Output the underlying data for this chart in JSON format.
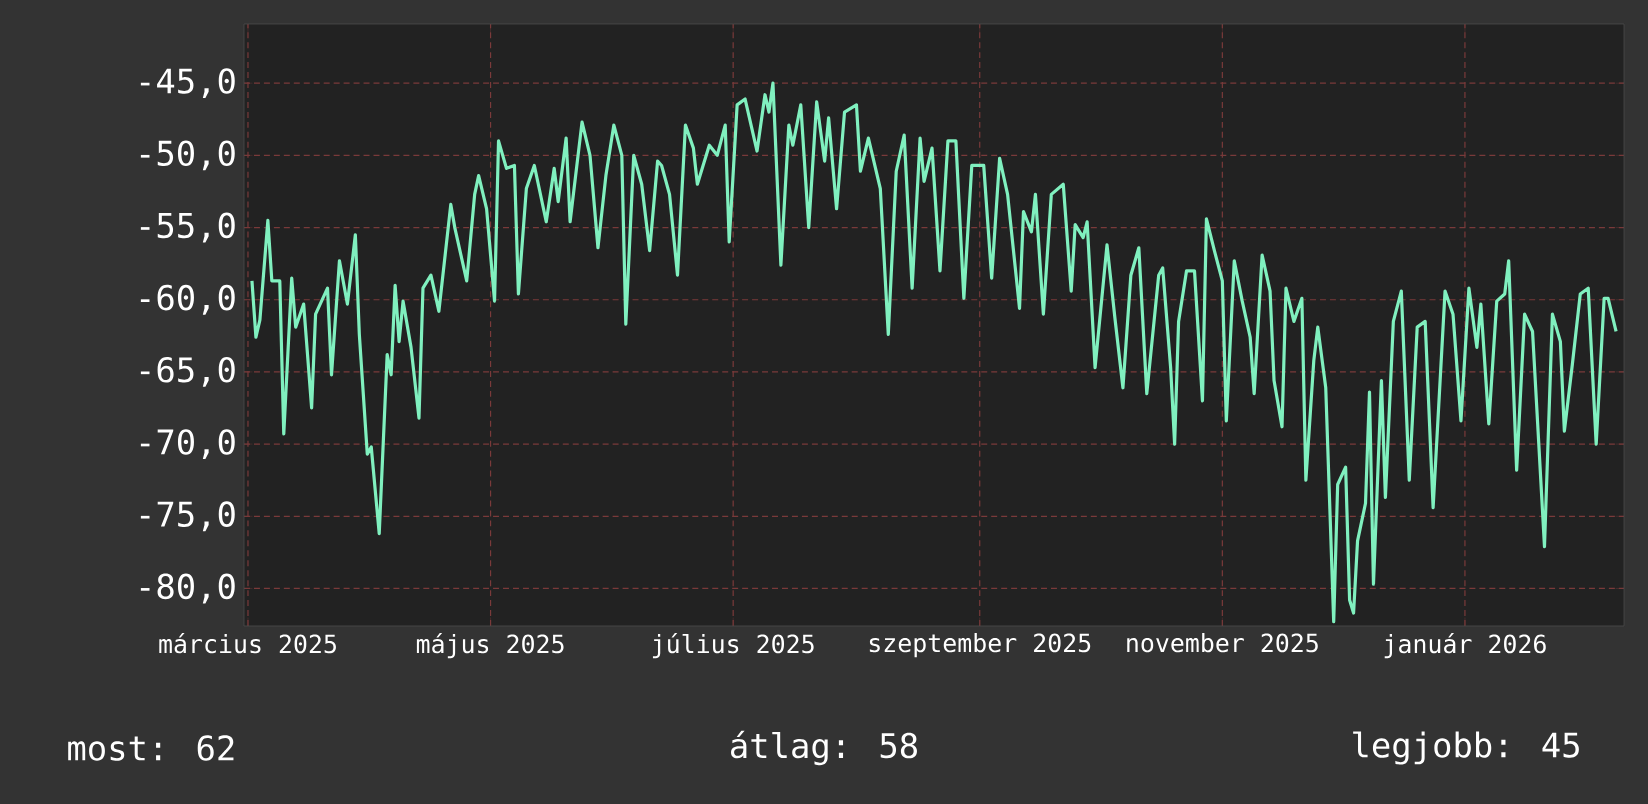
{
  "chart_data": {
    "type": "line",
    "color": "#80f0bf",
    "grid": true,
    "xlim": [
      "2025-02-28",
      "2026-02-10"
    ],
    "ylim": [
      -82.6,
      -40.9
    ],
    "xticks": [
      {
        "value": "2025-03-01",
        "label": "március 2025"
      },
      {
        "value": "2025-05-01",
        "label": "május 2025"
      },
      {
        "value": "2025-07-01",
        "label": "július 2025"
      },
      {
        "value": "2025-09-01",
        "label": "szeptember 2025"
      },
      {
        "value": "2025-11-01",
        "label": "november 2025"
      },
      {
        "value": "2026-01-01",
        "label": "január 2026"
      }
    ],
    "yticks": [
      {
        "value": -45,
        "label": "-45,0"
      },
      {
        "value": -50,
        "label": "-50,0"
      },
      {
        "value": -55,
        "label": "-55,0"
      },
      {
        "value": -60,
        "label": "-60,0"
      },
      {
        "value": -65,
        "label": "-65,0"
      },
      {
        "value": -70,
        "label": "-70,0"
      },
      {
        "value": -75,
        "label": "-75,0"
      },
      {
        "value": -80,
        "label": "-80,0"
      }
    ],
    "x": [
      "2025-03-02",
      "2025-03-03",
      "2025-03-04",
      "2025-03-06",
      "2025-03-07",
      "2025-03-09",
      "2025-03-10",
      "2025-03-12",
      "2025-03-13",
      "2025-03-15",
      "2025-03-17",
      "2025-03-18",
      "2025-03-21",
      "2025-03-22",
      "2025-03-24",
      "2025-03-26",
      "2025-03-28",
      "2025-03-29",
      "2025-03-31",
      "2025-04-01",
      "2025-04-03",
      "2025-04-05",
      "2025-04-06",
      "2025-04-07",
      "2025-04-08",
      "2025-04-09",
      "2025-04-11",
      "2025-04-13",
      "2025-04-14",
      "2025-04-16",
      "2025-04-18",
      "2025-04-21",
      "2025-04-22",
      "2025-04-25",
      "2025-04-27",
      "2025-04-28",
      "2025-04-30",
      "2025-05-02",
      "2025-05-03",
      "2025-05-05",
      "2025-05-07",
      "2025-05-08",
      "2025-05-10",
      "2025-05-12",
      "2025-05-15",
      "2025-05-17",
      "2025-05-18",
      "2025-05-20",
      "2025-05-21",
      "2025-05-24",
      "2025-05-26",
      "2025-05-28",
      "2025-05-30",
      "2025-06-01",
      "2025-06-03",
      "2025-06-04",
      "2025-06-06",
      "2025-06-08",
      "2025-06-10",
      "2025-06-12",
      "2025-06-13",
      "2025-06-15",
      "2025-06-17",
      "2025-06-19",
      "2025-06-21",
      "2025-06-22",
      "2025-06-25",
      "2025-06-27",
      "2025-06-29",
      "2025-06-30",
      "2025-07-02",
      "2025-07-04",
      "2025-07-07",
      "2025-07-09",
      "2025-07-10",
      "2025-07-11",
      "2025-07-13",
      "2025-07-15",
      "2025-07-16",
      "2025-07-18",
      "2025-07-20",
      "2025-07-22",
      "2025-07-24",
      "2025-07-25",
      "2025-07-27",
      "2025-07-29",
      "2025-08-01",
      "2025-08-02",
      "2025-08-04",
      "2025-08-07",
      "2025-08-09",
      "2025-08-11",
      "2025-08-13",
      "2025-08-15",
      "2025-08-17",
      "2025-08-18",
      "2025-08-20",
      "2025-08-22",
      "2025-08-24",
      "2025-08-26",
      "2025-08-28",
      "2025-08-30",
      "2025-09-02",
      "2025-09-04",
      "2025-09-06",
      "2025-09-08",
      "2025-09-11",
      "2025-09-12",
      "2025-09-14",
      "2025-09-15",
      "2025-09-17",
      "2025-09-19",
      "2025-09-22",
      "2025-09-24",
      "2025-09-25",
      "2025-09-27",
      "2025-09-28",
      "2025-09-30",
      "2025-10-03",
      "2025-10-05",
      "2025-10-07",
      "2025-10-09",
      "2025-10-11",
      "2025-10-13",
      "2025-10-16",
      "2025-10-17",
      "2025-10-19",
      "2025-10-20",
      "2025-10-21",
      "2025-10-23",
      "2025-10-25",
      "2025-10-27",
      "2025-10-28",
      "2025-10-30",
      "2025-11-01",
      "2025-11-02",
      "2025-11-04",
      "2025-11-06",
      "2025-11-08",
      "2025-11-09",
      "2025-11-11",
      "2025-11-13",
      "2025-11-14",
      "2025-11-16",
      "2025-11-17",
      "2025-11-19",
      "2025-11-21",
      "2025-11-22",
      "2025-11-24",
      "2025-11-25",
      "2025-11-27",
      "2025-11-29",
      "2025-11-30",
      "2025-12-02",
      "2025-12-03",
      "2025-12-04",
      "2025-12-05",
      "2025-12-07",
      "2025-12-08",
      "2025-12-09",
      "2025-12-11",
      "2025-12-12",
      "2025-12-14",
      "2025-12-16",
      "2025-12-18",
      "2025-12-20",
      "2025-12-22",
      "2025-12-24",
      "2025-12-27",
      "2025-12-29",
      "2025-12-31",
      "2026-01-02",
      "2026-01-04",
      "2026-01-05",
      "2026-01-07",
      "2026-01-09",
      "2026-01-11",
      "2026-01-12",
      "2026-01-14",
      "2026-01-16",
      "2026-01-18",
      "2026-01-21",
      "2026-01-23",
      "2026-01-25",
      "2026-01-26",
      "2026-01-28",
      "2026-01-30",
      "2026-02-01",
      "2026-02-03",
      "2026-02-05",
      "2026-02-06",
      "2026-02-08"
    ],
    "values": [
      -58.7,
      -62.6,
      -61.4,
      -54.5,
      -58.7,
      -58.7,
      -69.3,
      -58.5,
      -61.9,
      -60.3,
      -67.5,
      -61.0,
      -59.2,
      -65.2,
      -57.3,
      -60.3,
      -55.5,
      -62.4,
      -70.7,
      -70.2,
      -76.2,
      -63.8,
      -65.2,
      -59.0,
      -62.9,
      -60.1,
      -63.3,
      -68.2,
      -59.2,
      -58.3,
      -60.8,
      -53.4,
      -55.0,
      -58.7,
      -52.7,
      -51.4,
      -53.7,
      -60.1,
      -49.0,
      -50.9,
      -50.7,
      -59.6,
      -52.3,
      -50.7,
      -54.6,
      -50.9,
      -53.2,
      -48.8,
      -54.6,
      -47.7,
      -50.0,
      -56.4,
      -51.4,
      -47.9,
      -50.0,
      -61.7,
      -50.0,
      -52.0,
      -56.6,
      -50.4,
      -50.7,
      -52.7,
      -58.3,
      -47.9,
      -49.5,
      -52.0,
      -49.3,
      -50.0,
      -47.9,
      -56.0,
      -46.5,
      -46.1,
      -49.7,
      -45.8,
      -47.0,
      -45.0,
      -57.6,
      -47.9,
      -49.3,
      -46.5,
      -55.0,
      -46.3,
      -50.4,
      -47.4,
      -53.7,
      -47.0,
      -46.5,
      -51.1,
      -48.8,
      -52.3,
      -62.4,
      -51.1,
      -48.6,
      -59.2,
      -48.8,
      -51.8,
      -49.5,
      -58.0,
      -49.0,
      -49.0,
      -59.9,
      -50.7,
      -50.7,
      -58.5,
      -50.2,
      -52.7,
      -60.6,
      -53.9,
      -55.3,
      -52.7,
      -61.0,
      -52.7,
      -52.0,
      -59.4,
      -54.8,
      -55.7,
      -54.6,
      -64.7,
      -56.2,
      -61.3,
      -66.1,
      -58.3,
      -56.4,
      -66.5,
      -58.3,
      -57.8,
      -64.7,
      -70.0,
      -61.5,
      -58.0,
      -58.0,
      -67.0,
      -54.4,
      -56.6,
      -58.7,
      -68.4,
      -57.3,
      -60.1,
      -62.6,
      -66.5,
      -56.9,
      -59.4,
      -65.6,
      -68.8,
      -59.2,
      -61.5,
      -59.9,
      -72.5,
      -64.2,
      -61.9,
      -66.1,
      -82.3,
      -72.8,
      -71.6,
      -80.8,
      -81.7,
      -76.7,
      -74.1,
      -66.4,
      -79.7,
      -65.6,
      -73.7,
      -61.5,
      -59.4,
      -72.5,
      -61.9,
      -61.5,
      -74.4,
      -59.4,
      -61.0,
      -68.4,
      -59.2,
      -63.3,
      -60.3,
      -68.6,
      -60.1,
      -59.6,
      -57.3,
      -71.8,
      -61.0,
      -62.2,
      -77.1,
      -61.0,
      -62.9,
      -69.1,
      -64.5,
      -59.6,
      -59.2,
      -70.0,
      -59.9,
      -59.9,
      -62.2
    ],
    "annotations": [
      "most: 62",
      "átlag: 58",
      "legjobb: 45"
    ]
  }
}
